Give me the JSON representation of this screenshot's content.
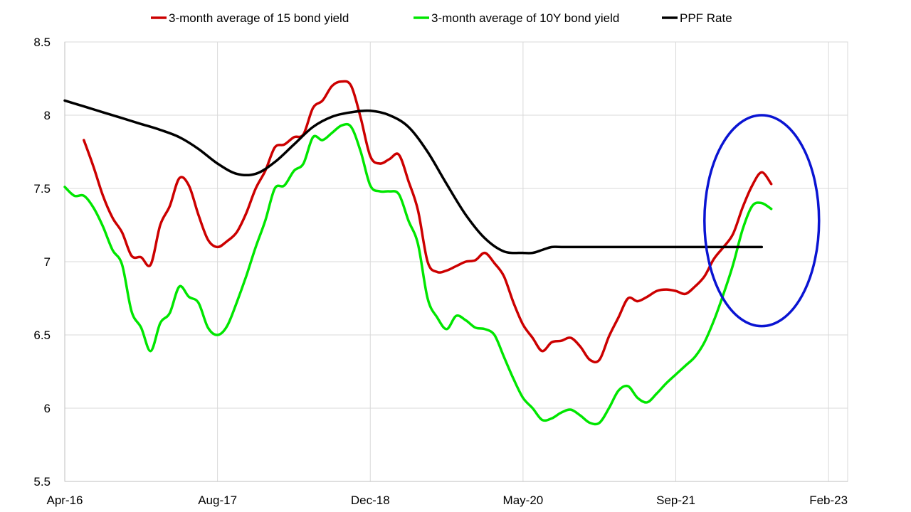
{
  "chart_data": {
    "type": "line",
    "title": "",
    "xlabel": "",
    "ylabel": "",
    "ylim": [
      5.5,
      8.5
    ],
    "xlim": [
      0,
      82
    ],
    "yticks": [
      5.5,
      6,
      6.5,
      7,
      7.5,
      8,
      8.5
    ],
    "ytick_labels": [
      "5.5",
      "6",
      "6.5",
      "7",
      "7.5",
      "8",
      "8.5"
    ],
    "xticks": [
      0,
      16,
      32,
      48,
      64,
      80
    ],
    "xtick_labels": [
      "Apr-16",
      "Aug-17",
      "Dec-18",
      "May-20",
      "Sep-21",
      "Feb-23"
    ],
    "grid": true,
    "legend_position": "top",
    "series": [
      {
        "name": "3-month average of 15 bond yield",
        "color": "#cc0000",
        "points": [
          [
            2,
            7.83
          ],
          [
            3,
            7.65
          ],
          [
            4,
            7.45
          ],
          [
            5,
            7.3
          ],
          [
            6,
            7.2
          ],
          [
            7,
            7.04
          ],
          [
            8,
            7.03
          ],
          [
            9,
            6.98
          ],
          [
            10,
            7.25
          ],
          [
            11,
            7.38
          ],
          [
            12,
            7.57
          ],
          [
            13,
            7.52
          ],
          [
            14,
            7.32
          ],
          [
            15,
            7.15
          ],
          [
            16,
            7.1
          ],
          [
            17,
            7.14
          ],
          [
            18,
            7.2
          ],
          [
            19,
            7.33
          ],
          [
            20,
            7.5
          ],
          [
            21,
            7.62
          ],
          [
            22,
            7.78
          ],
          [
            23,
            7.8
          ],
          [
            24,
            7.85
          ],
          [
            25,
            7.87
          ],
          [
            26,
            8.05
          ],
          [
            27,
            8.1
          ],
          [
            28,
            8.2
          ],
          [
            29,
            8.23
          ],
          [
            30,
            8.2
          ],
          [
            31,
            7.98
          ],
          [
            32,
            7.72
          ],
          [
            33,
            7.67
          ],
          [
            34,
            7.7
          ],
          [
            35,
            7.73
          ],
          [
            36,
            7.55
          ],
          [
            37,
            7.35
          ],
          [
            38,
            7.0
          ],
          [
            39,
            6.93
          ],
          [
            40,
            6.94
          ],
          [
            41,
            6.97
          ],
          [
            42,
            7.0
          ],
          [
            43,
            7.01
          ],
          [
            44,
            7.06
          ],
          [
            45,
            6.99
          ],
          [
            46,
            6.9
          ],
          [
            47,
            6.72
          ],
          [
            48,
            6.57
          ],
          [
            49,
            6.48
          ],
          [
            50,
            6.39
          ],
          [
            51,
            6.45
          ],
          [
            52,
            6.46
          ],
          [
            53,
            6.48
          ],
          [
            54,
            6.42
          ],
          [
            55,
            6.33
          ],
          [
            56,
            6.33
          ],
          [
            57,
            6.49
          ],
          [
            58,
            6.62
          ],
          [
            59,
            6.75
          ],
          [
            60,
            6.73
          ],
          [
            61,
            6.76
          ],
          [
            62,
            6.8
          ],
          [
            63,
            6.81
          ],
          [
            64,
            6.8
          ],
          [
            65,
            6.78
          ],
          [
            66,
            6.83
          ],
          [
            67,
            6.9
          ],
          [
            68,
            7.02
          ],
          [
            69,
            7.1
          ],
          [
            70,
            7.19
          ],
          [
            71,
            7.37
          ],
          [
            72,
            7.52
          ],
          [
            73,
            7.61
          ],
          [
            74,
            7.53
          ]
        ]
      },
      {
        "name": "3-month average of 10Y bond yield",
        "color": "#00e600",
        "points": [
          [
            0,
            7.51
          ],
          [
            1,
            7.45
          ],
          [
            2,
            7.45
          ],
          [
            3,
            7.37
          ],
          [
            4,
            7.24
          ],
          [
            5,
            7.08
          ],
          [
            6,
            6.98
          ],
          [
            7,
            6.66
          ],
          [
            8,
            6.55
          ],
          [
            9,
            6.39
          ],
          [
            10,
            6.58
          ],
          [
            11,
            6.65
          ],
          [
            12,
            6.83
          ],
          [
            13,
            6.76
          ],
          [
            14,
            6.72
          ],
          [
            15,
            6.55
          ],
          [
            16,
            6.5
          ],
          [
            17,
            6.56
          ],
          [
            18,
            6.72
          ],
          [
            19,
            6.9
          ],
          [
            20,
            7.1
          ],
          [
            21,
            7.28
          ],
          [
            22,
            7.5
          ],
          [
            23,
            7.52
          ],
          [
            24,
            7.62
          ],
          [
            25,
            7.67
          ],
          [
            26,
            7.85
          ],
          [
            27,
            7.83
          ],
          [
            28,
            7.88
          ],
          [
            29,
            7.93
          ],
          [
            30,
            7.92
          ],
          [
            31,
            7.75
          ],
          [
            32,
            7.52
          ],
          [
            33,
            7.48
          ],
          [
            34,
            7.48
          ],
          [
            35,
            7.46
          ],
          [
            36,
            7.28
          ],
          [
            37,
            7.12
          ],
          [
            38,
            6.75
          ],
          [
            39,
            6.62
          ],
          [
            40,
            6.54
          ],
          [
            41,
            6.63
          ],
          [
            42,
            6.6
          ],
          [
            43,
            6.55
          ],
          [
            44,
            6.54
          ],
          [
            45,
            6.5
          ],
          [
            46,
            6.35
          ],
          [
            47,
            6.2
          ],
          [
            48,
            6.07
          ],
          [
            49,
            6.0
          ],
          [
            50,
            5.92
          ],
          [
            51,
            5.93
          ],
          [
            52,
            5.97
          ],
          [
            53,
            5.99
          ],
          [
            54,
            5.95
          ],
          [
            55,
            5.9
          ],
          [
            56,
            5.9
          ],
          [
            57,
            6.0
          ],
          [
            58,
            6.12
          ],
          [
            59,
            6.15
          ],
          [
            60,
            6.07
          ],
          [
            61,
            6.04
          ],
          [
            62,
            6.1
          ],
          [
            63,
            6.17
          ],
          [
            64,
            6.23
          ],
          [
            65,
            6.29
          ],
          [
            66,
            6.35
          ],
          [
            67,
            6.45
          ],
          [
            68,
            6.6
          ],
          [
            69,
            6.78
          ],
          [
            70,
            6.98
          ],
          [
            71,
            7.22
          ],
          [
            72,
            7.38
          ],
          [
            73,
            7.4
          ],
          [
            74,
            7.36
          ]
        ]
      },
      {
        "name": "PPF Rate",
        "color": "#000000",
        "points": [
          [
            0,
            8.1
          ],
          [
            2,
            8.06
          ],
          [
            4,
            8.02
          ],
          [
            6,
            7.98
          ],
          [
            8,
            7.94
          ],
          [
            10,
            7.9
          ],
          [
            12,
            7.85
          ],
          [
            14,
            7.77
          ],
          [
            16,
            7.67
          ],
          [
            18,
            7.6
          ],
          [
            20,
            7.6
          ],
          [
            22,
            7.68
          ],
          [
            24,
            7.8
          ],
          [
            26,
            7.92
          ],
          [
            28,
            7.99
          ],
          [
            30,
            8.02
          ],
          [
            32,
            8.03
          ],
          [
            34,
            8.0
          ],
          [
            36,
            7.92
          ],
          [
            38,
            7.75
          ],
          [
            40,
            7.53
          ],
          [
            42,
            7.32
          ],
          [
            44,
            7.16
          ],
          [
            46,
            7.07
          ],
          [
            48,
            7.06
          ],
          [
            49,
            7.06
          ],
          [
            50,
            7.08
          ],
          [
            51,
            7.1
          ],
          [
            52,
            7.1
          ],
          [
            55,
            7.1
          ],
          [
            60,
            7.1
          ],
          [
            65,
            7.1
          ],
          [
            70,
            7.1
          ],
          [
            73,
            7.1
          ]
        ]
      }
    ],
    "annotation": {
      "shape": "ellipse",
      "color": "#0a14d2",
      "center_x": 73,
      "center_y": 7.28,
      "radius_x": 6.0,
      "radius_y": 0.72
    }
  }
}
